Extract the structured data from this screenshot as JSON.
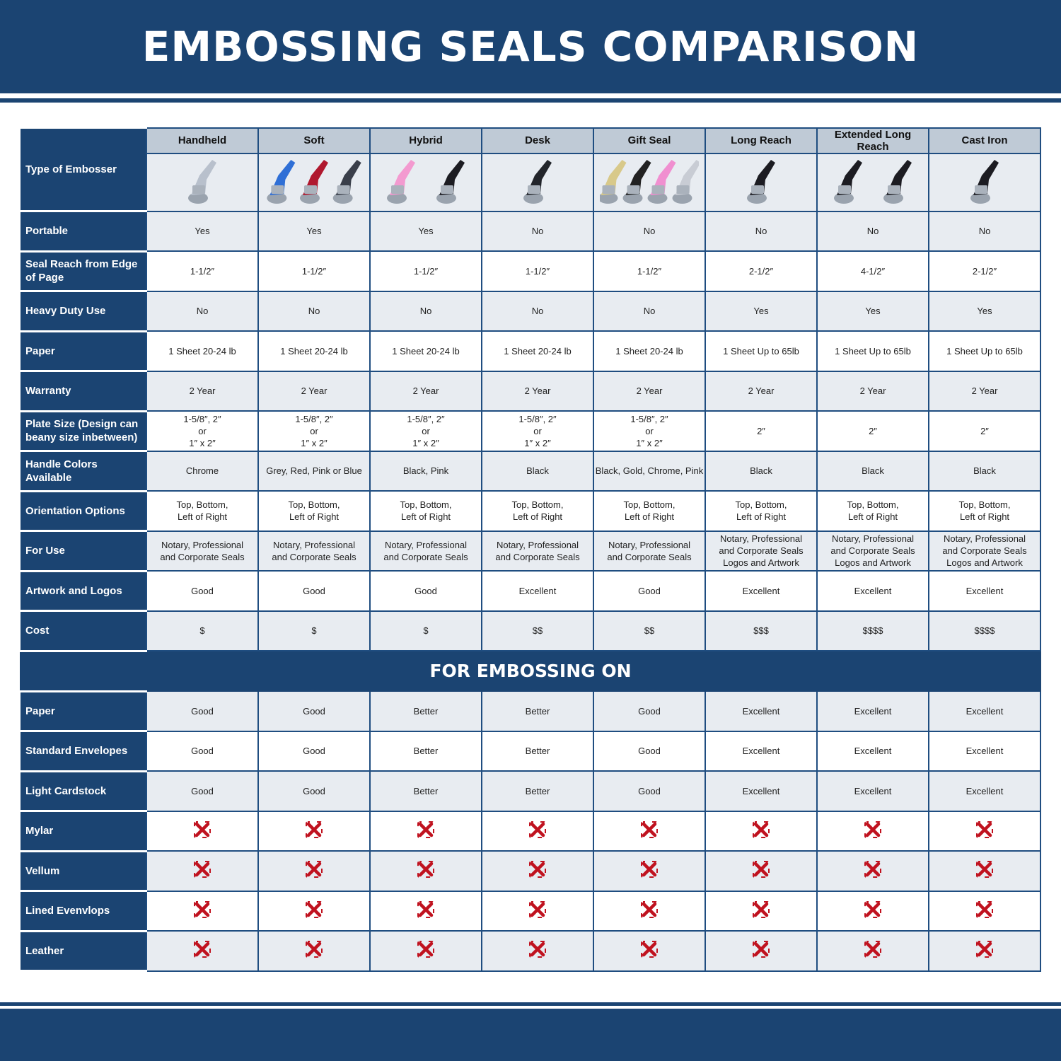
{
  "title": "EMBOSSING SEALS COMPARISON",
  "colors": {
    "brand_blue": "#1b4472",
    "header_gray": "#bfcad6",
    "row_gray": "#e8ecf1",
    "cross_red": "#c0121f"
  },
  "type_label": "Type of Embosser",
  "columns": [
    "Handheld",
    "Soft",
    "Hybrid",
    "Desk",
    "Gift Seal",
    "Long Reach",
    "Extended Long Reach",
    "Cast Iron"
  ],
  "rows": [
    {
      "label": "Portable",
      "values": [
        "Yes",
        "Yes",
        "Yes",
        "No",
        "No",
        "No",
        "No",
        "No"
      ]
    },
    {
      "label": "Seal Reach from Edge of Page",
      "values": [
        "1-1/2″",
        "1-1/2″",
        "1-1/2″",
        "1-1/2″",
        "1-1/2″",
        "2-1/2″",
        "4-1/2″",
        "2-1/2″"
      ]
    },
    {
      "label": "Heavy Duty Use",
      "values": [
        "No",
        "No",
        "No",
        "No",
        "No",
        "Yes",
        "Yes",
        "Yes"
      ]
    },
    {
      "label": "Paper",
      "values": [
        "1 Sheet 20-24 lb",
        "1 Sheet 20-24 lb",
        "1 Sheet 20-24 lb",
        "1 Sheet 20-24 lb",
        "1 Sheet 20-24 lb",
        "1 Sheet Up to 65lb",
        "1 Sheet Up to 65lb",
        "1 Sheet Up to 65lb"
      ]
    },
    {
      "label": "Warranty",
      "values": [
        "2 Year",
        "2 Year",
        "2 Year",
        "2 Year",
        "2 Year",
        "2 Year",
        "2 Year",
        "2 Year"
      ]
    },
    {
      "label": "Plate Size (Design can beany size inbetween)",
      "values": [
        "1-5/8″, 2″\nor\n1″ x 2″",
        "1-5/8″, 2″\nor\n1″ x 2″",
        "1-5/8″, 2″\nor\n1″ x 2″",
        "1-5/8″, 2″\nor\n1″ x 2″",
        "1-5/8″, 2″\nor\n1″ x 2″",
        "2″",
        "2″",
        "2″"
      ]
    },
    {
      "label": "Handle Colors Available",
      "values": [
        "Chrome",
        "Grey, Red, Pink or Blue",
        "Black, Pink",
        "Black",
        "Black, Gold, Chrome, Pink",
        "Black",
        "Black",
        "Black"
      ]
    },
    {
      "label": "Orientation Options",
      "values": [
        "Top, Bottom,\nLeft of Right",
        "Top, Bottom,\nLeft of Right",
        "Top, Bottom,\nLeft of Right",
        "Top, Bottom,\nLeft of Right",
        "Top, Bottom,\nLeft of Right",
        "Top, Bottom,\nLeft of Right",
        "Top, Bottom,\nLeft of Right",
        "Top, Bottom,\nLeft of Right"
      ]
    },
    {
      "label": "For Use",
      "values": [
        "Notary, Professional\nand Corporate Seals",
        "Notary, Professional\nand Corporate Seals",
        "Notary, Professional\nand Corporate Seals",
        "Notary, Professional\nand Corporate Seals",
        "Notary, Professional\nand Corporate Seals",
        "Notary, Professional\nand Corporate Seals\nLogos and Artwork",
        "Notary, Professional\nand Corporate Seals\nLogos and Artwork",
        "Notary, Professional\nand Corporate Seals\nLogos and Artwork"
      ]
    },
    {
      "label": "Artwork and Logos",
      "values": [
        "Good",
        "Good",
        "Good",
        "Excellent",
        "Good",
        "Excellent",
        "Excellent",
        "Excellent"
      ]
    },
    {
      "label": "Cost",
      "values": [
        "$",
        "$",
        "$",
        "$$",
        "$$",
        "$$$",
        "$$$$",
        "$$$$"
      ]
    }
  ],
  "section_title": "FOR EMBOSSING ON",
  "embossing_rows": [
    {
      "label": "Paper",
      "values": [
        "Good",
        "Good",
        "Better",
        "Better",
        "Good",
        "Excellent",
        "Excellent",
        "Excellent"
      ]
    },
    {
      "label": "Standard Envelopes",
      "values": [
        "Good",
        "Good",
        "Better",
        "Better",
        "Good",
        "Excellent",
        "Excellent",
        "Excellent"
      ]
    },
    {
      "label": "Light Cardstock",
      "values": [
        "Good",
        "Good",
        "Better",
        "Better",
        "Good",
        "Excellent",
        "Excellent",
        "Excellent"
      ]
    },
    {
      "label": "Mylar",
      "values": [
        "no",
        "no",
        "no",
        "no",
        "no",
        "no",
        "no",
        "no"
      ]
    },
    {
      "label": "Vellum",
      "values": [
        "no",
        "no",
        "no",
        "no",
        "no",
        "no",
        "no",
        "no"
      ]
    },
    {
      "label": "Lined Evenvlops",
      "values": [
        "no",
        "no",
        "no",
        "no",
        "no",
        "no",
        "no",
        "no"
      ]
    },
    {
      "label": "Leather",
      "values": [
        "no",
        "no",
        "no",
        "no",
        "no",
        "no",
        "no",
        "no"
      ]
    }
  ]
}
